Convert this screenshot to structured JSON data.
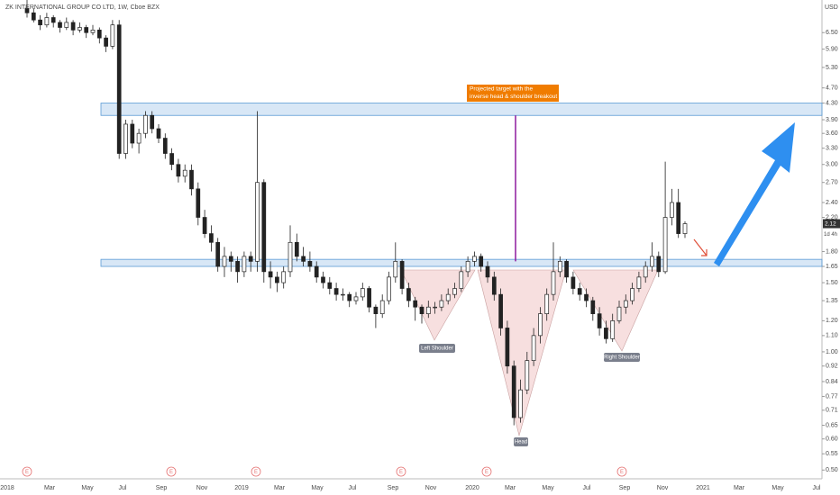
{
  "chart_data": {
    "type": "candlestick",
    "title": "ZK INTERNATIONAL GROUP CO LTD, 1W, Cboe BZX",
    "currency": "USD",
    "log_scale": true,
    "ylim": [
      0.48,
      7.87
    ],
    "yticks": [
      {
        "value": 6.5,
        "label": "6.50"
      },
      {
        "value": 5.9,
        "label": "5.90"
      },
      {
        "value": 5.3,
        "label": "5.30"
      },
      {
        "value": 4.7,
        "label": "4.70"
      },
      {
        "value": 4.3,
        "label": "4.30"
      },
      {
        "value": 3.9,
        "label": "3.90"
      },
      {
        "value": 3.6,
        "label": "3.60"
      },
      {
        "value": 3.3,
        "label": "3.30"
      },
      {
        "value": 3,
        "label": "3.00"
      },
      {
        "value": 2.7,
        "label": "2.70"
      },
      {
        "value": 2.4,
        "label": "2.40"
      },
      {
        "value": 2.2,
        "label": "2.20"
      },
      {
        "value": 1.8,
        "label": "1.80"
      },
      {
        "value": 1.65,
        "label": "1.65"
      },
      {
        "value": 1.5,
        "label": "1.50"
      },
      {
        "value": 1.35,
        "label": "1.35"
      },
      {
        "value": 1.2,
        "label": "1.20"
      },
      {
        "value": 1.1,
        "label": "1.10"
      },
      {
        "value": 1,
        "label": "1.00"
      },
      {
        "value": 0.92,
        "label": "0.92"
      },
      {
        "value": 0.84,
        "label": "0.84"
      },
      {
        "value": 0.77,
        "label": "0.77"
      },
      {
        "value": 0.71,
        "label": "0.71"
      },
      {
        "value": 0.65,
        "label": "0.65"
      },
      {
        "value": 0.6,
        "label": "0.60"
      },
      {
        "value": 0.55,
        "label": "0.55"
      },
      {
        "value": 0.5,
        "label": "0.50"
      }
    ],
    "x_labels": [
      "2018",
      "Mar",
      "May",
      "Jul",
      "Sep",
      "Nov",
      "2019",
      "Mar",
      "May",
      "Jul",
      "Sep",
      "Nov",
      "2020",
      "Mar",
      "May",
      "Jul",
      "Sep",
      "Nov",
      "2021",
      "Mar",
      "May",
      "Jul"
    ],
    "current_price": 2.12,
    "countdown": "1d 4h",
    "zones": [
      [
        4.0,
        4.3
      ],
      [
        1.65,
        1.72
      ]
    ],
    "target_line": [
      1.7,
      4.0
    ],
    "annotation": [
      "Projected target with the",
      "inverse head & shoulder breakout"
    ],
    "pattern_labels": [
      "Left Shoulder",
      "Head",
      "Right Shoulder"
    ],
    "event_markers": [
      "E",
      "E",
      "E",
      "E",
      "E",
      "E"
    ],
    "candles": [
      [
        7.5,
        7.9,
        7.1,
        7.3
      ],
      [
        7.3,
        7.5,
        6.9,
        7.0
      ],
      [
        7.0,
        7.2,
        6.6,
        6.8
      ],
      [
        6.8,
        7.3,
        6.7,
        7.1
      ],
      [
        7.1,
        7.2,
        6.7,
        6.9
      ],
      [
        6.9,
        7.0,
        6.5,
        6.7
      ],
      [
        6.7,
        7.1,
        6.6,
        6.9
      ],
      [
        6.9,
        7.0,
        6.4,
        6.6
      ],
      [
        6.6,
        6.9,
        6.5,
        6.7
      ],
      [
        6.7,
        6.8,
        6.3,
        6.5
      ],
      [
        6.5,
        6.8,
        6.4,
        6.6
      ],
      [
        6.6,
        6.7,
        6.1,
        6.3
      ],
      [
        6.3,
        6.4,
        5.8,
        6.0
      ],
      [
        6.0,
        7.0,
        5.9,
        6.8
      ],
      [
        6.8,
        7.0,
        3.1,
        3.2
      ],
      [
        3.2,
        3.9,
        3.1,
        3.8
      ],
      [
        3.8,
        3.9,
        3.3,
        3.4
      ],
      [
        3.4,
        3.7,
        3.2,
        3.6
      ],
      [
        3.6,
        4.1,
        3.5,
        4.0
      ],
      [
        4.0,
        4.1,
        3.6,
        3.7
      ],
      [
        3.7,
        3.8,
        3.4,
        3.5
      ],
      [
        3.5,
        3.6,
        3.1,
        3.2
      ],
      [
        3.2,
        3.3,
        2.9,
        3.0
      ],
      [
        3.0,
        3.1,
        2.7,
        2.8
      ],
      [
        2.8,
        3.0,
        2.7,
        2.9
      ],
      [
        2.9,
        3.0,
        2.5,
        2.6
      ],
      [
        2.6,
        2.7,
        2.1,
        2.2
      ],
      [
        2.2,
        2.3,
        1.95,
        2.0
      ],
      [
        2.0,
        2.1,
        1.8,
        1.9
      ],
      [
        1.9,
        1.95,
        1.6,
        1.65
      ],
      [
        1.65,
        1.85,
        1.55,
        1.75
      ],
      [
        1.75,
        1.8,
        1.6,
        1.7
      ],
      [
        1.7,
        1.75,
        1.5,
        1.6
      ],
      [
        1.6,
        1.8,
        1.55,
        1.75
      ],
      [
        1.75,
        1.8,
        1.6,
        1.7
      ],
      [
        1.7,
        4.1,
        1.6,
        2.7
      ],
      [
        2.7,
        2.75,
        1.5,
        1.6
      ],
      [
        1.6,
        1.7,
        1.45,
        1.55
      ],
      [
        1.55,
        1.6,
        1.42,
        1.5
      ],
      [
        1.5,
        1.65,
        1.45,
        1.6
      ],
      [
        1.6,
        2.1,
        1.55,
        1.9
      ],
      [
        1.9,
        2.0,
        1.7,
        1.75
      ],
      [
        1.75,
        1.85,
        1.65,
        1.7
      ],
      [
        1.7,
        1.8,
        1.6,
        1.65
      ],
      [
        1.65,
        1.7,
        1.5,
        1.55
      ],
      [
        1.55,
        1.6,
        1.45,
        1.5
      ],
      [
        1.5,
        1.55,
        1.4,
        1.45
      ],
      [
        1.45,
        1.5,
        1.35,
        1.4
      ],
      [
        1.4,
        1.45,
        1.35,
        1.4
      ],
      [
        1.4,
        1.42,
        1.3,
        1.35
      ],
      [
        1.35,
        1.42,
        1.32,
        1.38
      ],
      [
        1.38,
        1.5,
        1.35,
        1.45
      ],
      [
        1.45,
        1.47,
        1.26,
        1.3
      ],
      [
        1.3,
        1.32,
        1.15,
        1.25
      ],
      [
        1.25,
        1.4,
        1.22,
        1.35
      ],
      [
        1.35,
        1.6,
        1.32,
        1.55
      ],
      [
        1.55,
        1.9,
        1.5,
        1.7
      ],
      [
        1.7,
        1.72,
        1.4,
        1.45
      ],
      [
        1.45,
        1.5,
        1.3,
        1.35
      ],
      [
        1.35,
        1.38,
        1.2,
        1.3
      ],
      [
        1.3,
        1.32,
        1.18,
        1.25
      ],
      [
        1.25,
        1.35,
        1.22,
        1.3
      ],
      [
        1.3,
        1.34,
        1.25,
        1.3
      ],
      [
        1.3,
        1.4,
        1.27,
        1.35
      ],
      [
        1.35,
        1.45,
        1.32,
        1.4
      ],
      [
        1.4,
        1.5,
        1.37,
        1.45
      ],
      [
        1.45,
        1.65,
        1.42,
        1.6
      ],
      [
        1.6,
        1.75,
        1.55,
        1.7
      ],
      [
        1.7,
        1.8,
        1.65,
        1.75
      ],
      [
        1.75,
        1.78,
        1.6,
        1.65
      ],
      [
        1.65,
        1.7,
        1.5,
        1.55
      ],
      [
        1.55,
        1.6,
        1.35,
        1.4
      ],
      [
        1.4,
        1.45,
        1.1,
        1.15
      ],
      [
        1.15,
        1.2,
        0.88,
        0.92
      ],
      [
        0.92,
        0.95,
        0.65,
        0.68
      ],
      [
        0.68,
        0.85,
        0.66,
        0.8
      ],
      [
        0.8,
        1.0,
        0.78,
        0.95
      ],
      [
        0.95,
        1.15,
        0.92,
        1.1
      ],
      [
        1.1,
        1.3,
        1.05,
        1.25
      ],
      [
        1.25,
        1.45,
        1.2,
        1.4
      ],
      [
        1.4,
        1.9,
        1.35,
        1.6
      ],
      [
        1.6,
        1.75,
        1.55,
        1.7
      ],
      [
        1.7,
        1.72,
        1.5,
        1.55
      ],
      [
        1.55,
        1.6,
        1.4,
        1.45
      ],
      [
        1.45,
        1.5,
        1.35,
        1.4
      ],
      [
        1.4,
        1.45,
        1.3,
        1.35
      ],
      [
        1.35,
        1.38,
        1.2,
        1.25
      ],
      [
        1.25,
        1.3,
        1.1,
        1.15
      ],
      [
        1.15,
        1.2,
        1.05,
        1.08
      ],
      [
        1.08,
        1.25,
        1.06,
        1.2
      ],
      [
        1.2,
        1.35,
        1.18,
        1.3
      ],
      [
        1.3,
        1.4,
        1.25,
        1.35
      ],
      [
        1.35,
        1.5,
        1.32,
        1.45
      ],
      [
        1.45,
        1.6,
        1.42,
        1.55
      ],
      [
        1.55,
        1.7,
        1.5,
        1.65
      ],
      [
        1.65,
        1.9,
        1.6,
        1.75
      ],
      [
        1.75,
        1.8,
        1.55,
        1.6
      ],
      [
        1.6,
        3.05,
        1.58,
        2.2
      ],
      [
        2.2,
        2.6,
        2.1,
        2.4
      ],
      [
        2.4,
        2.6,
        1.95,
        2.0
      ],
      [
        2.0,
        2.15,
        1.95,
        2.12
      ]
    ]
  }
}
